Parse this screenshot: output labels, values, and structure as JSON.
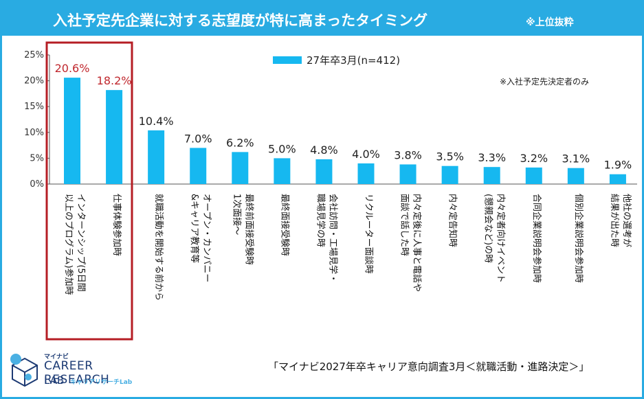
{
  "header": {
    "title": "入社予定先企業に対する志望度が特に高まったタイミング",
    "subtitle": "※上位抜粋"
  },
  "note": "※入社予定先決定者のみ",
  "source": "「マイナビ2027年卒キャリア意向調査3月＜就職活動・進路決定＞」",
  "logo": {
    "mynavi": "マイナビ",
    "line1": "CAREER RESEARCH",
    "line2": "LAB",
    "sub": "キャリアリサーチLab"
  },
  "colors": {
    "bar": "#16b8f0",
    "header": "#29abe2",
    "highlight_box": "#b51d24",
    "highlight_text": "#c0272d"
  },
  "chart_data": {
    "type": "bar",
    "title": "入社予定先企業に対する志望度が特に高まったタイミング",
    "legend": "27年卒3月(n=412)",
    "legend_position": "top",
    "ylim": [
      0,
      25
    ],
    "yticks": [
      "0%",
      "5%",
      "10%",
      "15%",
      "20%",
      "25%"
    ],
    "ytick_values": [
      0,
      5,
      10,
      15,
      20,
      25
    ],
    "grid": false,
    "highlighted_indices": [
      0,
      1
    ],
    "categories": [
      [
        "インターンシップ(5日間",
        "以上のプログラム)参加時"
      ],
      [
        "仕事体験参加時"
      ],
      [
        "就職活動を開始する前から"
      ],
      [
        "オープン・カンパニー",
        "&キャリア教育等"
      ],
      [
        "最終前面接受験時",
        "1次面接～"
      ],
      [
        "最終面接受験時"
      ],
      [
        "会社訪問・工場見学・",
        "職場見学の時"
      ],
      [
        "リクルーター面談時"
      ],
      [
        "内々定後に人事と電話や",
        "面談で話した時"
      ],
      [
        "内々定告知時"
      ],
      [
        "内々定者向けイベント",
        "(懇親会など)の時"
      ],
      [
        "合同企業説明会参加時"
      ],
      [
        "個別企業説明会参加時"
      ],
      [
        "他社の選考が",
        "結果が出た時"
      ]
    ],
    "values": [
      20.6,
      18.2,
      10.4,
      7.0,
      6.2,
      5.0,
      4.8,
      4.0,
      3.8,
      3.5,
      3.3,
      3.2,
      3.1,
      1.9
    ],
    "value_labels": [
      "20.6%",
      "18.2%",
      "10.4%",
      "7.0%",
      "6.2%",
      "5.0%",
      "4.8%",
      "4.0%",
      "3.8%",
      "3.5%",
      "3.3%",
      "3.2%",
      "3.1%",
      "1.9%"
    ]
  }
}
